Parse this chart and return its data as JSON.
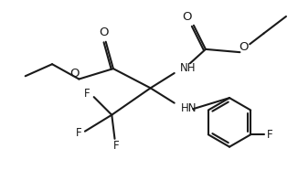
{
  "bg_color": "#ffffff",
  "line_color": "#1a1a1a",
  "line_width": 1.5,
  "font_size": 8.5,
  "xlim": [
    0,
    10
  ],
  "ylim": [
    0,
    6.4
  ]
}
